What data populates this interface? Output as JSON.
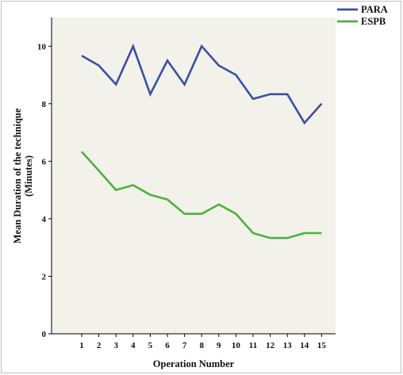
{
  "chart_data": {
    "type": "line",
    "title": "",
    "xlabel": "Operation Number",
    "ylabel_line1": "Mean Duration of the technique",
    "ylabel_line2": "(Minutes)",
    "categories": [
      "1",
      "2",
      "3",
      "4",
      "5",
      "6",
      "7",
      "8",
      "9",
      "10",
      "11",
      "12",
      "13",
      "14",
      "15"
    ],
    "ylim": [
      0,
      11
    ],
    "yticks": [
      "0",
      "2",
      "4",
      "6",
      "8",
      "10"
    ],
    "legend_position": "top-right",
    "plot_background": "#f2f2ea",
    "series": [
      {
        "name": "PARA",
        "color": "#3c4ea3",
        "values": [
          9.67,
          9.33,
          8.67,
          10.0,
          8.33,
          9.5,
          8.67,
          10.0,
          9.33,
          9.0,
          8.17,
          8.33,
          8.33,
          7.33,
          8.0
        ]
      },
      {
        "name": "ESPB",
        "color": "#4db13f",
        "values": [
          6.33,
          5.67,
          5.0,
          5.17,
          4.83,
          4.67,
          4.17,
          4.17,
          4.5,
          4.17,
          3.5,
          3.33,
          3.33,
          3.5,
          3.5
        ]
      }
    ]
  }
}
